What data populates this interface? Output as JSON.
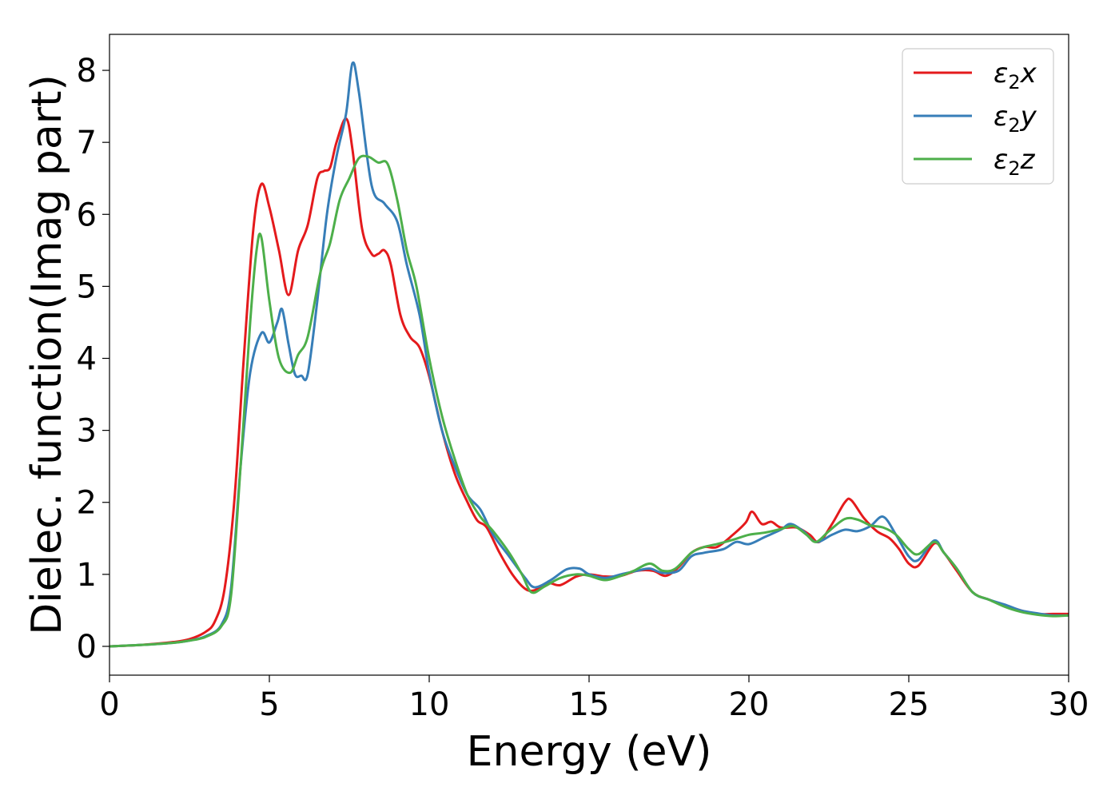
{
  "chart_data": {
    "type": "line",
    "title": "",
    "xlabel": "Energy (eV)",
    "ylabel": "Dielec. function(Imag part)",
    "xlim": [
      0,
      30
    ],
    "ylim": [
      -0.4,
      8.5
    ],
    "xticks": [
      0,
      5,
      10,
      15,
      20,
      25,
      30
    ],
    "yticks": [
      0,
      1,
      2,
      3,
      4,
      5,
      6,
      7,
      8
    ],
    "grid": false,
    "legend_position": "top-right",
    "series": [
      {
        "name": "ε₂x",
        "legend": {
          "base": "ε",
          "sub": "2",
          "axis": "x"
        },
        "color": "#e41a1c",
        "points": [
          [
            0,
            0
          ],
          [
            1,
            0.02
          ],
          [
            2,
            0.06
          ],
          [
            2.5,
            0.1
          ],
          [
            3,
            0.2
          ],
          [
            3.3,
            0.35
          ],
          [
            3.6,
            0.8
          ],
          [
            3.9,
            2.0
          ],
          [
            4.2,
            4.0
          ],
          [
            4.5,
            5.8
          ],
          [
            4.75,
            6.42
          ],
          [
            5.0,
            6.1
          ],
          [
            5.3,
            5.5
          ],
          [
            5.6,
            4.88
          ],
          [
            5.9,
            5.5
          ],
          [
            6.2,
            5.85
          ],
          [
            6.5,
            6.5
          ],
          [
            6.7,
            6.6
          ],
          [
            6.9,
            6.65
          ],
          [
            7.1,
            7.0
          ],
          [
            7.4,
            7.33
          ],
          [
            7.6,
            6.9
          ],
          [
            7.9,
            5.8
          ],
          [
            8.2,
            5.45
          ],
          [
            8.4,
            5.45
          ],
          [
            8.6,
            5.5
          ],
          [
            8.8,
            5.3
          ],
          [
            9.1,
            4.6
          ],
          [
            9.4,
            4.3
          ],
          [
            9.7,
            4.15
          ],
          [
            10,
            3.75
          ],
          [
            10.4,
            3.0
          ],
          [
            10.8,
            2.4
          ],
          [
            11.2,
            2.0
          ],
          [
            11.5,
            1.75
          ],
          [
            11.8,
            1.65
          ],
          [
            12.2,
            1.3
          ],
          [
            12.6,
            1.0
          ],
          [
            13.0,
            0.8
          ],
          [
            13.3,
            0.78
          ],
          [
            13.7,
            0.88
          ],
          [
            14.1,
            0.85
          ],
          [
            14.6,
            0.97
          ],
          [
            15.0,
            1.0
          ],
          [
            15.5,
            0.97
          ],
          [
            16.0,
            0.98
          ],
          [
            16.5,
            1.05
          ],
          [
            17.0,
            1.05
          ],
          [
            17.4,
            0.98
          ],
          [
            17.8,
            1.1
          ],
          [
            18.2,
            1.3
          ],
          [
            18.6,
            1.38
          ],
          [
            19.0,
            1.38
          ],
          [
            19.5,
            1.55
          ],
          [
            19.9,
            1.72
          ],
          [
            20.1,
            1.87
          ],
          [
            20.4,
            1.7
          ],
          [
            20.7,
            1.73
          ],
          [
            21.0,
            1.65
          ],
          [
            21.5,
            1.65
          ],
          [
            21.9,
            1.55
          ],
          [
            22.2,
            1.45
          ],
          [
            22.6,
            1.7
          ],
          [
            23.0,
            2.0
          ],
          [
            23.2,
            2.03
          ],
          [
            23.6,
            1.78
          ],
          [
            24.0,
            1.6
          ],
          [
            24.4,
            1.5
          ],
          [
            24.7,
            1.35
          ],
          [
            25.0,
            1.15
          ],
          [
            25.3,
            1.12
          ],
          [
            25.8,
            1.43
          ],
          [
            26.1,
            1.3
          ],
          [
            26.5,
            1.05
          ],
          [
            27.0,
            0.75
          ],
          [
            27.5,
            0.65
          ],
          [
            28.0,
            0.57
          ],
          [
            28.5,
            0.5
          ],
          [
            29.0,
            0.45
          ],
          [
            29.5,
            0.45
          ],
          [
            30,
            0.45
          ]
        ]
      },
      {
        "name": "ε₂y",
        "legend": {
          "base": "ε",
          "sub": "2",
          "axis": "y"
        },
        "color": "#377eb8",
        "points": [
          [
            0,
            0
          ],
          [
            1,
            0.02
          ],
          [
            2,
            0.05
          ],
          [
            2.5,
            0.08
          ],
          [
            3,
            0.14
          ],
          [
            3.5,
            0.3
          ],
          [
            3.8,
            0.8
          ],
          [
            4.1,
            2.5
          ],
          [
            4.4,
            3.8
          ],
          [
            4.75,
            4.35
          ],
          [
            5.0,
            4.22
          ],
          [
            5.25,
            4.5
          ],
          [
            5.4,
            4.68
          ],
          [
            5.6,
            4.2
          ],
          [
            5.8,
            3.78
          ],
          [
            6.0,
            3.76
          ],
          [
            6.2,
            3.78
          ],
          [
            6.5,
            4.8
          ],
          [
            6.8,
            6.0
          ],
          [
            7.1,
            6.8
          ],
          [
            7.4,
            7.4
          ],
          [
            7.6,
            8.1
          ],
          [
            7.8,
            7.7
          ],
          [
            8.2,
            6.4
          ],
          [
            8.6,
            6.15
          ],
          [
            9.0,
            5.9
          ],
          [
            9.3,
            5.3
          ],
          [
            9.7,
            4.6
          ],
          [
            10,
            3.8
          ],
          [
            10.4,
            3.0
          ],
          [
            10.8,
            2.5
          ],
          [
            11.2,
            2.1
          ],
          [
            11.6,
            1.9
          ],
          [
            12.0,
            1.55
          ],
          [
            12.5,
            1.25
          ],
          [
            13.0,
            0.95
          ],
          [
            13.3,
            0.82
          ],
          [
            13.8,
            0.92
          ],
          [
            14.3,
            1.07
          ],
          [
            14.7,
            1.08
          ],
          [
            15.0,
            1.0
          ],
          [
            15.5,
            0.95
          ],
          [
            16.0,
            1.0
          ],
          [
            16.5,
            1.05
          ],
          [
            16.9,
            1.08
          ],
          [
            17.3,
            1.02
          ],
          [
            17.8,
            1.05
          ],
          [
            18.2,
            1.25
          ],
          [
            18.6,
            1.3
          ],
          [
            19.2,
            1.35
          ],
          [
            19.6,
            1.45
          ],
          [
            20.0,
            1.42
          ],
          [
            20.5,
            1.52
          ],
          [
            21.0,
            1.62
          ],
          [
            21.3,
            1.7
          ],
          [
            21.7,
            1.6
          ],
          [
            22.1,
            1.45
          ],
          [
            22.6,
            1.55
          ],
          [
            23.0,
            1.62
          ],
          [
            23.4,
            1.6
          ],
          [
            23.8,
            1.67
          ],
          [
            24.2,
            1.8
          ],
          [
            24.6,
            1.55
          ],
          [
            25.0,
            1.25
          ],
          [
            25.3,
            1.2
          ],
          [
            25.8,
            1.47
          ],
          [
            26.1,
            1.3
          ],
          [
            26.5,
            1.08
          ],
          [
            27.0,
            0.75
          ],
          [
            27.5,
            0.65
          ],
          [
            28.0,
            0.58
          ],
          [
            28.5,
            0.5
          ],
          [
            29.0,
            0.46
          ],
          [
            29.5,
            0.43
          ],
          [
            30,
            0.43
          ]
        ]
      },
      {
        "name": "ε₂z",
        "legend": {
          "base": "ε",
          "sub": "2",
          "axis": "z"
        },
        "color": "#4daf4a",
        "points": [
          [
            0,
            0
          ],
          [
            1,
            0.02
          ],
          [
            2,
            0.05
          ],
          [
            2.5,
            0.08
          ],
          [
            3,
            0.13
          ],
          [
            3.5,
            0.28
          ],
          [
            3.8,
            0.7
          ],
          [
            4.1,
            2.5
          ],
          [
            4.4,
            4.5
          ],
          [
            4.6,
            5.5
          ],
          [
            4.75,
            5.68
          ],
          [
            5.0,
            4.8
          ],
          [
            5.3,
            4.0
          ],
          [
            5.65,
            3.8
          ],
          [
            5.9,
            4.05
          ],
          [
            6.2,
            4.3
          ],
          [
            6.6,
            5.2
          ],
          [
            6.9,
            5.6
          ],
          [
            7.2,
            6.2
          ],
          [
            7.5,
            6.5
          ],
          [
            7.8,
            6.78
          ],
          [
            8.1,
            6.8
          ],
          [
            8.4,
            6.72
          ],
          [
            8.7,
            6.7
          ],
          [
            9.0,
            6.2
          ],
          [
            9.3,
            5.5
          ],
          [
            9.6,
            5.0
          ],
          [
            10,
            4.0
          ],
          [
            10.4,
            3.2
          ],
          [
            10.8,
            2.6
          ],
          [
            11.2,
            2.1
          ],
          [
            11.6,
            1.8
          ],
          [
            12.0,
            1.6
          ],
          [
            12.5,
            1.3
          ],
          [
            12.9,
            1.0
          ],
          [
            13.2,
            0.75
          ],
          [
            13.6,
            0.83
          ],
          [
            14.1,
            0.95
          ],
          [
            14.6,
            1.0
          ],
          [
            15.0,
            0.98
          ],
          [
            15.5,
            0.92
          ],
          [
            16.0,
            0.98
          ],
          [
            16.4,
            1.05
          ],
          [
            16.9,
            1.15
          ],
          [
            17.3,
            1.05
          ],
          [
            17.7,
            1.08
          ],
          [
            18.2,
            1.3
          ],
          [
            18.6,
            1.38
          ],
          [
            19.0,
            1.42
          ],
          [
            19.5,
            1.48
          ],
          [
            20.0,
            1.55
          ],
          [
            20.5,
            1.58
          ],
          [
            21.0,
            1.63
          ],
          [
            21.4,
            1.67
          ],
          [
            21.8,
            1.55
          ],
          [
            22.1,
            1.45
          ],
          [
            22.5,
            1.6
          ],
          [
            23.0,
            1.77
          ],
          [
            23.4,
            1.76
          ],
          [
            23.8,
            1.68
          ],
          [
            24.2,
            1.65
          ],
          [
            24.6,
            1.55
          ],
          [
            25.0,
            1.35
          ],
          [
            25.3,
            1.28
          ],
          [
            25.8,
            1.45
          ],
          [
            26.1,
            1.3
          ],
          [
            26.5,
            1.08
          ],
          [
            27.0,
            0.75
          ],
          [
            27.5,
            0.65
          ],
          [
            28.0,
            0.55
          ],
          [
            28.5,
            0.48
          ],
          [
            29.0,
            0.44
          ],
          [
            29.5,
            0.42
          ],
          [
            30,
            0.43
          ]
        ]
      }
    ]
  }
}
